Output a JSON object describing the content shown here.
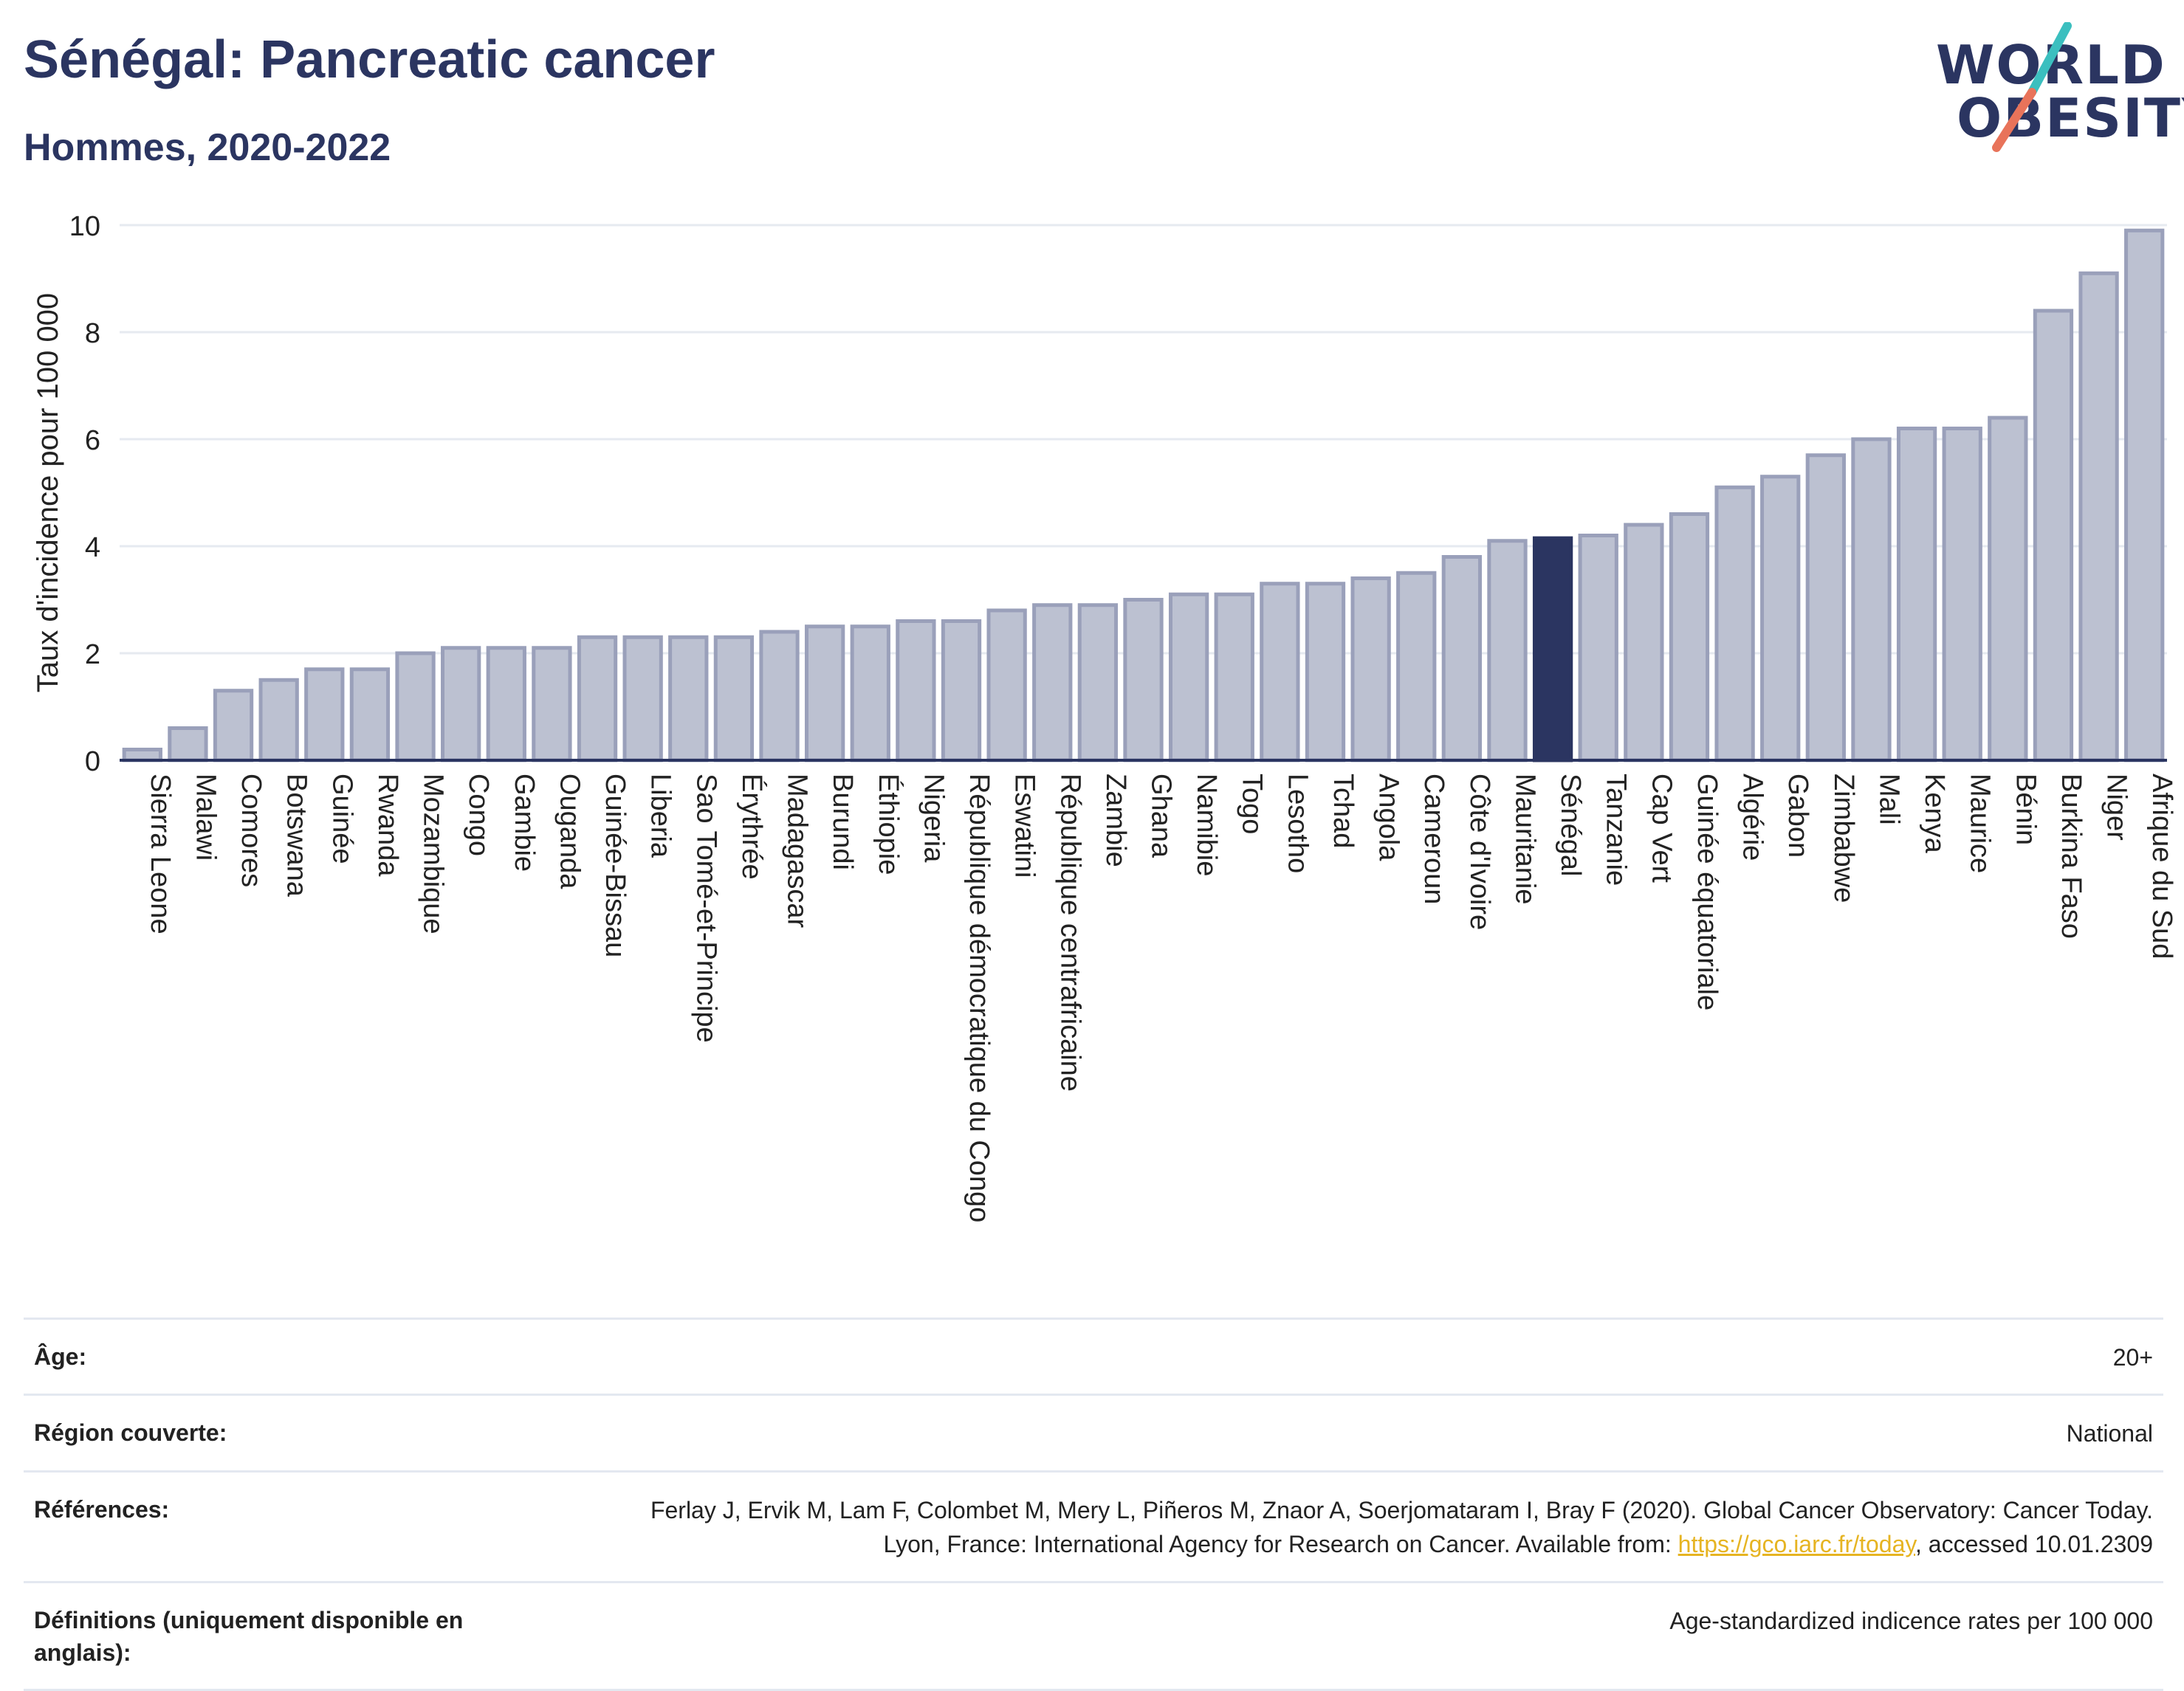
{
  "header": {
    "title": "Sénégal: Pancreatic cancer",
    "subtitle": "Hommes, 2020-2022"
  },
  "logo": {
    "line1": "WORLD",
    "line2": "OBESITY",
    "colors": {
      "text": "#2b3561",
      "slash_teal": "#3bbfbf",
      "slash_coral": "#e8735a"
    }
  },
  "colors": {
    "bar_fill": "#bcc1d1",
    "bar_stroke": "#9aa0ba",
    "highlight_fill": "#2b3561",
    "axis": "#2b3561",
    "grid": "#e6eaf0"
  },
  "chart_data": {
    "type": "bar",
    "title": "",
    "xlabel": "",
    "ylabel": "Taux d'incidence pour 100 000",
    "ylim": [
      0,
      10
    ],
    "yticks": [
      0,
      2,
      4,
      6,
      8,
      10
    ],
    "grid": true,
    "highlight": "Sénégal",
    "categories": [
      "Sierra Leone",
      "Malawi",
      "Comores",
      "Botswana",
      "Guinée",
      "Rwanda",
      "Mozambique",
      "Congo",
      "Gambie",
      "Ouganda",
      "Guinée-Bissau",
      "Liberia",
      "Sao Tomé-et-Principe",
      "Érythrée",
      "Madagascar",
      "Burundi",
      "Éthiopie",
      "Nigeria",
      "République démocratique du Congo",
      "Eswatini",
      "République centrafricaine",
      "Zambie",
      "Ghana",
      "Namibie",
      "Togo",
      "Lesotho",
      "Tchad",
      "Angola",
      "Cameroun",
      "Côte d'Ivoire",
      "Mauritanie",
      "Sénégal",
      "Tanzanie",
      "Cap Vert",
      "Guinée équatoriale",
      "Algérie",
      "Gabon",
      "Zimbabwe",
      "Mali",
      "Kenya",
      "Maurice",
      "Bénin",
      "Burkina Faso",
      "Niger",
      "Afrique du Sud"
    ],
    "values": [
      0.2,
      0.6,
      1.3,
      1.5,
      1.7,
      1.7,
      2.0,
      2.1,
      2.1,
      2.1,
      2.3,
      2.3,
      2.3,
      2.3,
      2.4,
      2.5,
      2.5,
      2.6,
      2.6,
      2.8,
      2.9,
      2.9,
      3.0,
      3.1,
      3.1,
      3.3,
      3.3,
      3.4,
      3.5,
      3.8,
      4.1,
      4.15,
      4.2,
      4.4,
      4.6,
      5.1,
      5.3,
      5.7,
      6.0,
      6.2,
      6.2,
      6.4,
      8.4,
      9.1,
      9.9
    ]
  },
  "metadata_table": [
    {
      "label": "Âge:",
      "value": "20+"
    },
    {
      "label": "Région couverte:",
      "value": "National"
    },
    {
      "label": "Références:",
      "value_before": "Ferlay J, Ervik M, Lam F, Colombet M, Mery L, Piñeros M, Znaor A, Soerjomataram I, Bray F (2020). Global Cancer Observatory: Cancer Today. Lyon, France: International Agency for Research on Cancer. Available from: ",
      "link": "https://gco.iarc.fr/today",
      "value_after": ", accessed 10.01.2309"
    },
    {
      "label": "Définitions (uniquement disponible en anglais):",
      "value": "Age-standardized indicence rates per 100 000"
    }
  ]
}
